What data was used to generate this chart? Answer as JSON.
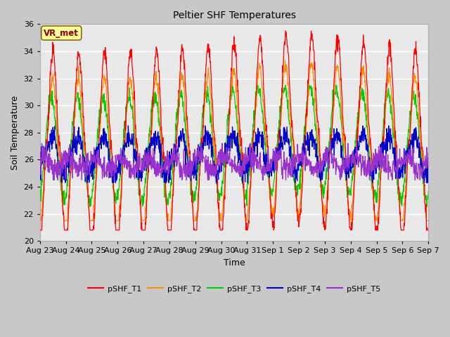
{
  "title": "Peltier SHF Temperatures",
  "xlabel": "Time",
  "ylabel": "Soil Temperature",
  "ylim": [
    20,
    36
  ],
  "background_color": "#e8e8e8",
  "axes_facecolor": "#e8e8e8",
  "fig_facecolor": "#c8c8c8",
  "grid_color": "white",
  "annotation_text": "VR_met",
  "annotation_facecolor": "#ffff99",
  "annotation_edgecolor": "#8b6914",
  "annotation_textcolor": "#8b0000",
  "series": {
    "pSHF_T1": {
      "color": "#ff0000",
      "lw": 0.9
    },
    "pSHF_T2": {
      "color": "#ff8c00",
      "lw": 0.9
    },
    "pSHF_T3": {
      "color": "#00cc00",
      "lw": 0.9
    },
    "pSHF_T4": {
      "color": "#0000cd",
      "lw": 0.9
    },
    "pSHF_T5": {
      "color": "#9932cc",
      "lw": 0.9
    }
  },
  "x_tick_labels": [
    "Aug 23",
    "Aug 24",
    "Aug 25",
    "Aug 26",
    "Aug 27",
    "Aug 28",
    "Aug 29",
    "Aug 30",
    "Aug 31",
    "Sep 1",
    "Sep 2",
    "Sep 3",
    "Sep 4",
    "Sep 5",
    "Sep 6",
    "Sep 7"
  ],
  "yticks": [
    20,
    22,
    24,
    26,
    28,
    30,
    32,
    34,
    36
  ],
  "num_points": 1440,
  "legend_entries": [
    "pSHF_T1",
    "pSHF_T2",
    "pSHF_T3",
    "pSHF_T4",
    "pSHF_T5"
  ]
}
